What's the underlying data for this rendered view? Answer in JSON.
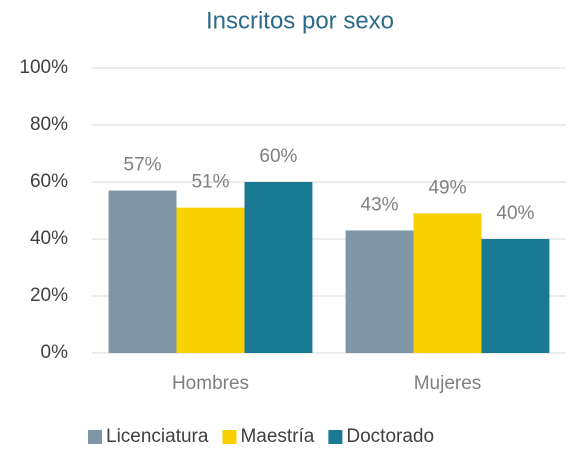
{
  "chart_data": {
    "type": "bar",
    "title": "Inscritos por sexo",
    "categories": [
      "Hombres",
      "Mujeres"
    ],
    "series": [
      {
        "name": "Licenciatura",
        "color": "#7f96a6",
        "values": [
          57,
          43
        ],
        "value_labels": [
          "57%",
          "43%"
        ]
      },
      {
        "name": "Maestría",
        "color": "#f9d000",
        "values": [
          51,
          49
        ],
        "value_labels": [
          "51%",
          "49%"
        ]
      },
      {
        "name": "Doctorado",
        "color": "#1a7a93",
        "values": [
          60,
          40
        ],
        "value_labels": [
          "60%",
          "40%"
        ]
      }
    ],
    "ylim": [
      0,
      100
    ],
    "yticks": [
      {
        "value": 0,
        "label": "0%"
      },
      {
        "value": 20,
        "label": "20%"
      },
      {
        "value": 40,
        "label": "40%"
      },
      {
        "value": 60,
        "label": "60%"
      },
      {
        "value": 80,
        "label": "80%"
      },
      {
        "value": 100,
        "label": "100%"
      }
    ],
    "grid": true,
    "legend": "bottom"
  }
}
